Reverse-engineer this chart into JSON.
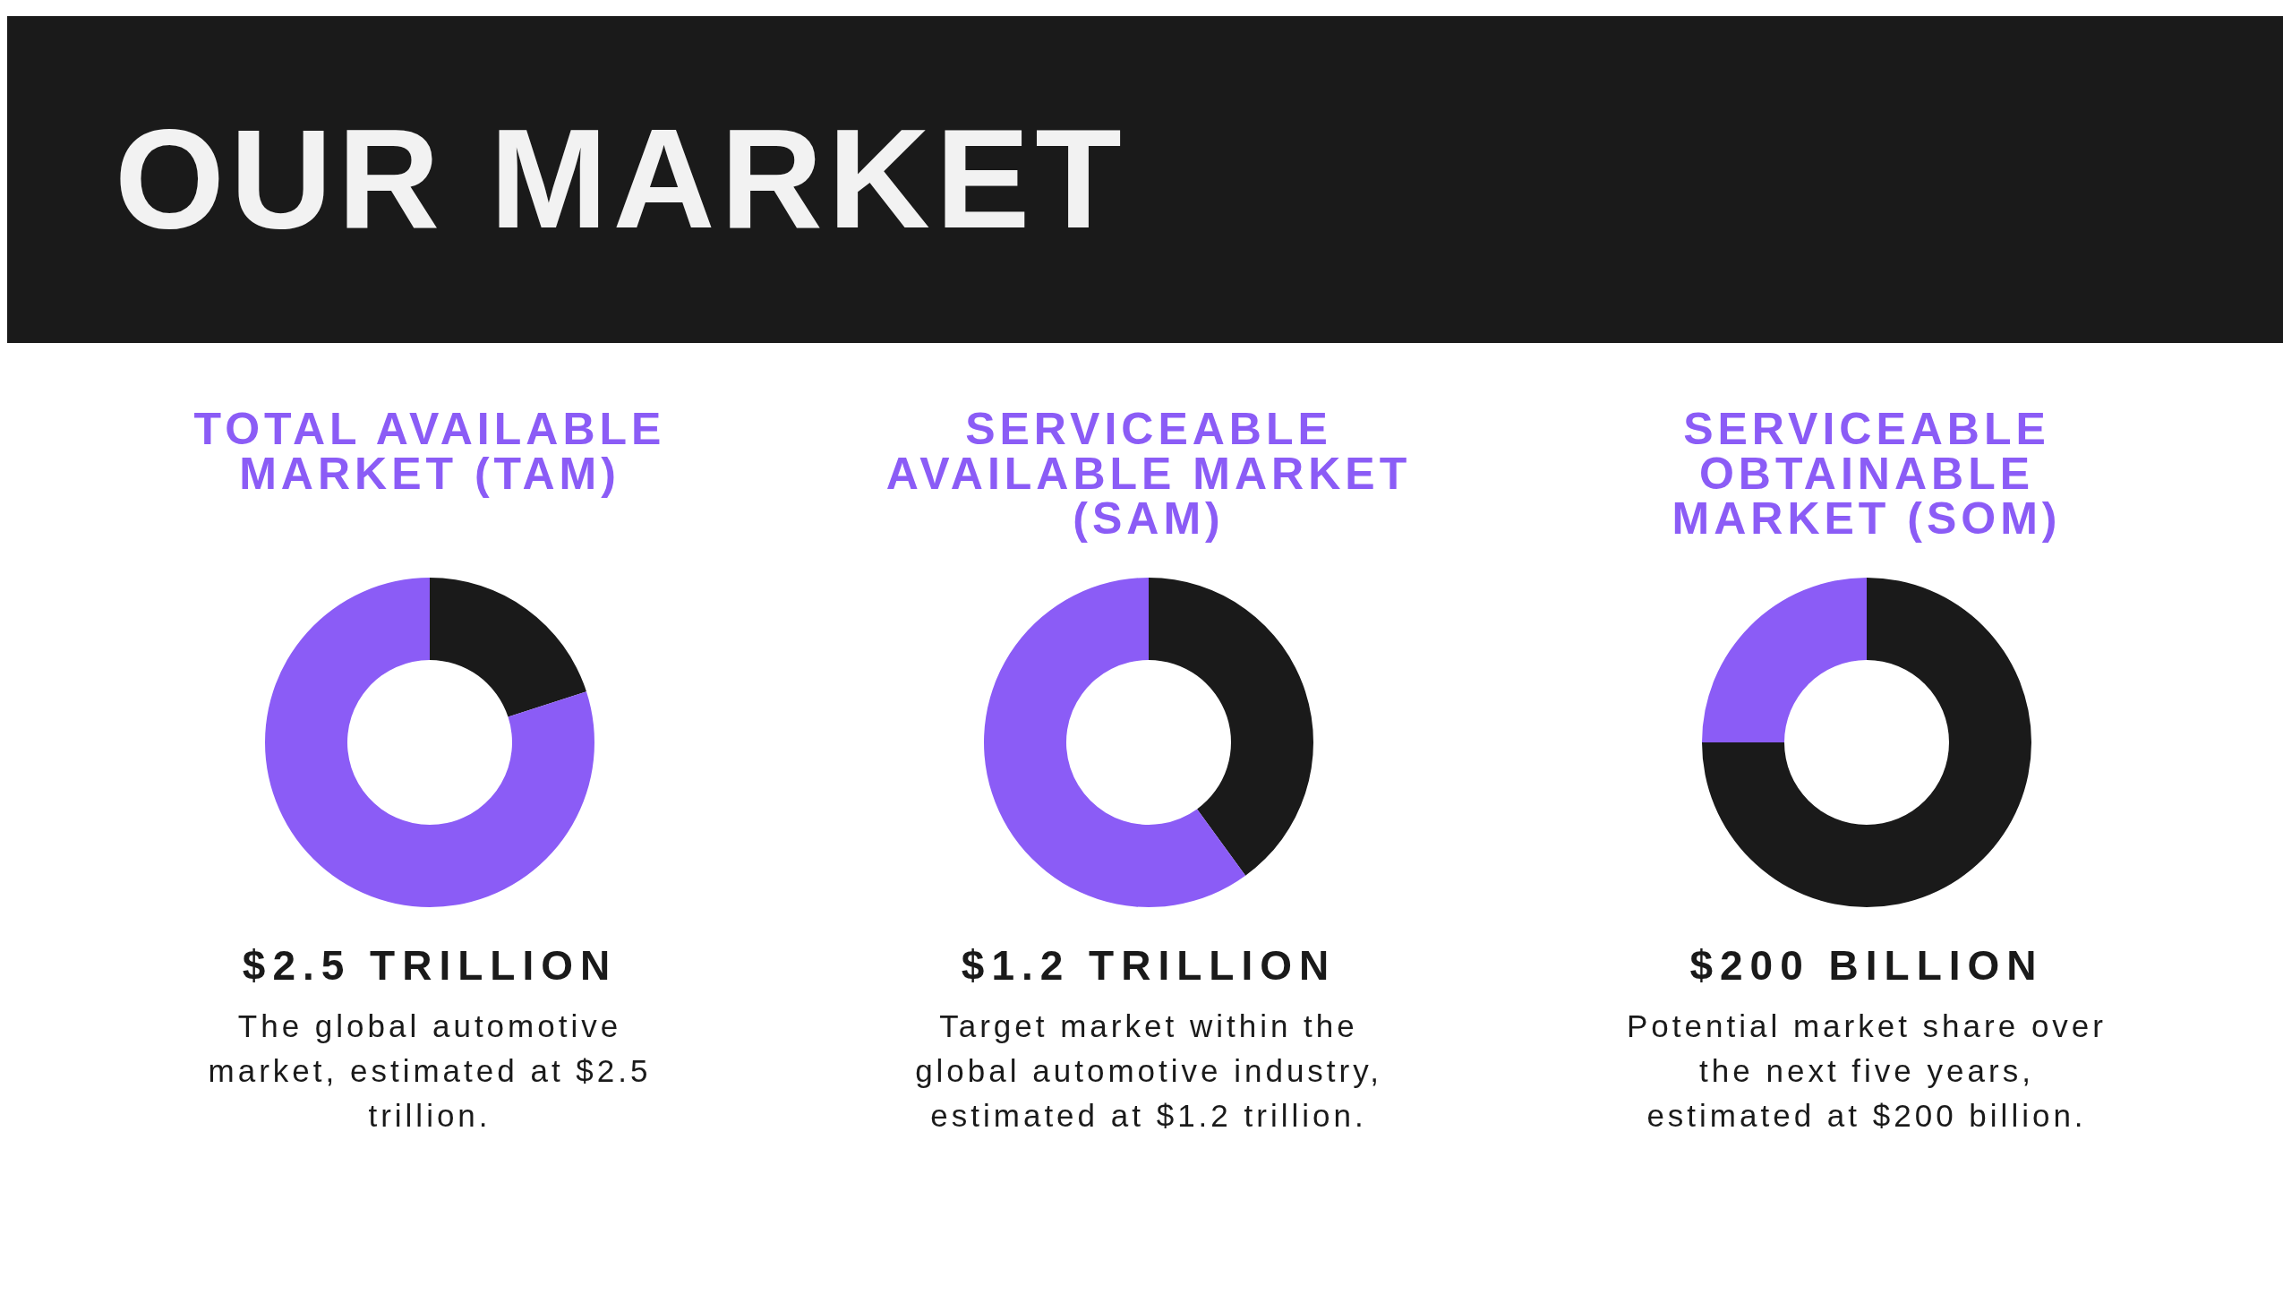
{
  "chart_data": [
    {
      "type": "other",
      "title": "OUR MARKET"
    },
    {
      "type": "donut",
      "title": "TOTAL AVAILABLE MARKET (TAM)",
      "subtitle": "$2.5 TRILLION",
      "annotations": [
        "The global automotive market, estimated at $2.5 trillion."
      ],
      "categories": [
        null,
        null
      ],
      "values": [
        20,
        80
      ],
      "colors": [
        "#1a1a1a",
        "#8b5cf6"
      ]
    },
    {
      "type": "donut",
      "title": "SERVICEABLE AVAILABLE MARKET (SAM)",
      "subtitle": "$1.2 TRILLION",
      "annotations": [
        "Target market within the global automotive industry, estimated at $1.2 trillion."
      ],
      "categories": [
        null,
        null
      ],
      "values": [
        40,
        60
      ],
      "colors": [
        "#1a1a1a",
        "#8b5cf6"
      ]
    },
    {
      "type": "donut",
      "title": "SERVICEABLE OBTAINABLE MARKET (SOM)",
      "subtitle": "$200 BILLION",
      "annotations": [
        "Potential market share over the next five years, estimated at $200 billion."
      ],
      "categories": [
        null,
        null
      ],
      "values": [
        75,
        25
      ],
      "colors": [
        "#1a1a1a",
        "#8b5cf6"
      ]
    }
  ]
}
